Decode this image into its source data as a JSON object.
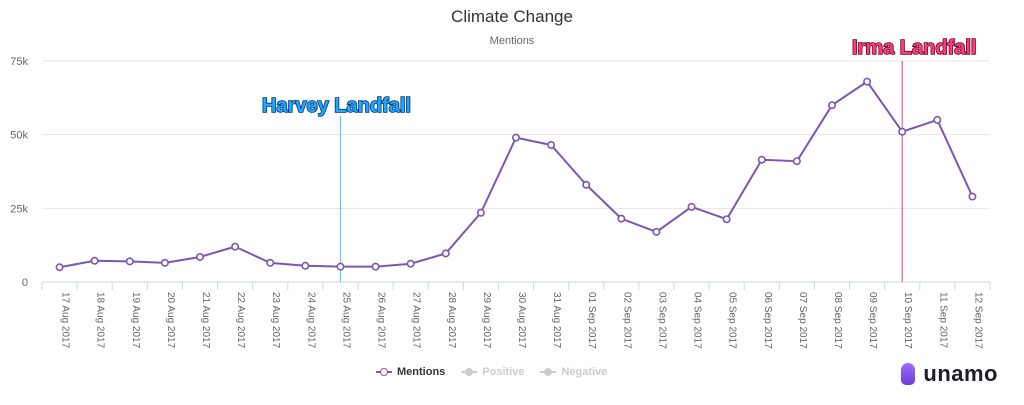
{
  "chart_data": {
    "type": "line",
    "title": "Climate Change",
    "subtitle": "Mentions",
    "categories": [
      "17 Aug 2017",
      "18 Aug 2017",
      "19 Aug 2017",
      "20 Aug 2017",
      "21 Aug 2017",
      "22 Aug 2017",
      "23 Aug 2017",
      "24 Aug 2017",
      "25 Aug 2017",
      "26 Aug 2017",
      "27 Aug 2017",
      "28 Aug 2017",
      "29 Aug 2017",
      "30 Aug 2017",
      "31 Aug 2017",
      "01 Sep 2017",
      "02 Sep 2017",
      "03 Sep 2017",
      "04 Sep 2017",
      "05 Sep 2017",
      "06 Sep 2017",
      "07 Sep 2017",
      "08 Sep 2017",
      "09 Sep 2017",
      "10 Sep 2017",
      "11 Sep 2017",
      "12 Sep 2017"
    ],
    "yticks": [
      "0",
      "25k",
      "50k",
      "75k"
    ],
    "ylim": [
      0,
      75000
    ],
    "series": [
      {
        "name": "Mentions",
        "color": "#7b58b0",
        "values": [
          5000,
          7200,
          7000,
          6500,
          8500,
          12000,
          6500,
          5500,
          5200,
          5200,
          6200,
          9700,
          23500,
          49000,
          46500,
          33000,
          21500,
          17000,
          25500,
          21300,
          41500,
          41000,
          60000,
          68000,
          51000,
          55000,
          29000
        ]
      }
    ],
    "legend": [
      {
        "name": "Mentions",
        "color": "#7b58b0",
        "active": true
      },
      {
        "name": "Positive",
        "color": "#cccccc",
        "active": false
      },
      {
        "name": "Negative",
        "color": "#cccccc",
        "active": false
      }
    ],
    "annotations": [
      {
        "label": "Harvey Landfall",
        "category_index": 8,
        "line_color": "#4fc3f7",
        "text_color": "#1ca9ff"
      },
      {
        "label": "Irma Landfall",
        "category_index": 24,
        "line_color": "#e8407a",
        "text_color": "#ff3a7a"
      }
    ],
    "grid": true,
    "legend_position": "bottom-center"
  },
  "brand": {
    "name": "unamo"
  }
}
